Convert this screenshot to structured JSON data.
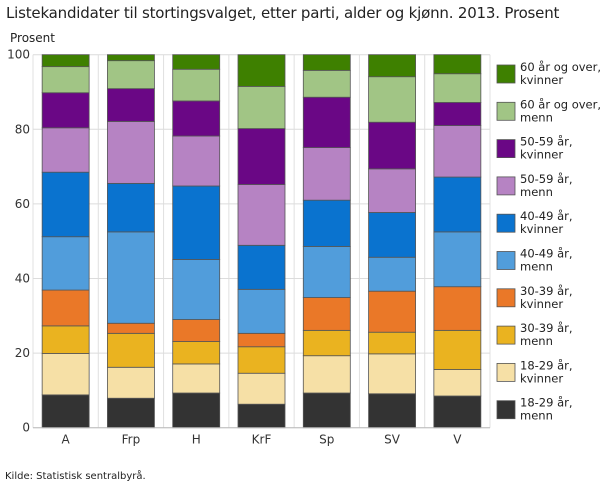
{
  "chart_data": {
    "type": "bar",
    "stacked": true,
    "title": "Listekandidater til stortingsvalget, etter parti, alder og kjønn. 2013. Prosent",
    "ylabel": "Prosent",
    "xlabel": "",
    "ylim": [
      0,
      100
    ],
    "yticks": [
      0,
      20,
      40,
      60,
      80,
      100
    ],
    "grid": true,
    "legend_position": "right",
    "categories": [
      "A",
      "Frp",
      "H",
      "KrF",
      "Sp",
      "SV",
      "V"
    ],
    "series": [
      {
        "name": "18-29 år, menn",
        "color": "#333333",
        "values": [
          8.8,
          7.9,
          9.3,
          6.3,
          9.3,
          9.1,
          8.5
        ]
      },
      {
        "name": "18-29 år, kvinner",
        "color": "#f6e0a6",
        "values": [
          11.1,
          8.3,
          7.8,
          8.3,
          10.0,
          10.7,
          7.1
        ]
      },
      {
        "name": "30-39 år, menn",
        "color": "#eab320",
        "values": [
          7.4,
          9.1,
          6.0,
          7.1,
          6.8,
          5.8,
          10.5
        ]
      },
      {
        "name": "30-39 år, kvinner",
        "color": "#ea7828",
        "values": [
          9.6,
          2.7,
          5.9,
          3.6,
          8.8,
          11.0,
          11.7
        ]
      },
      {
        "name": "40-49 år, menn",
        "color": "#519ddb",
        "values": [
          14.3,
          24.5,
          16.1,
          11.8,
          13.7,
          9.1,
          14.7
        ]
      },
      {
        "name": "40-49 år, kvinner",
        "color": "#0a73cf",
        "values": [
          17.3,
          13.0,
          19.7,
          11.8,
          12.4,
          12.0,
          14.7
        ]
      },
      {
        "name": "50-59 år, menn",
        "color": "#b683c3",
        "values": [
          11.9,
          16.6,
          13.4,
          16.3,
          14.1,
          11.7,
          13.8
        ]
      },
      {
        "name": "50-59 år, kvinner",
        "color": "#6a0785",
        "values": [
          9.4,
          8.8,
          9.4,
          15.0,
          13.5,
          12.5,
          6.2
        ]
      },
      {
        "name": "60 år og over, menn",
        "color": "#a1c585",
        "values": [
          7.0,
          7.5,
          8.5,
          11.3,
          7.2,
          12.2,
          7.7
        ]
      },
      {
        "name": "60 år og over, kvinner",
        "color": "#3e8000",
        "values": [
          3.2,
          1.6,
          3.9,
          8.5,
          4.2,
          5.9,
          5.1
        ]
      }
    ],
    "legend_labels": [
      [
        "60 år og over,",
        "kvinner"
      ],
      [
        "60 år og over,",
        "menn"
      ],
      [
        "50-59 år,",
        "kvinner"
      ],
      [
        "50-59 år,",
        "menn"
      ],
      [
        "40-49 år,",
        "kvinner"
      ],
      [
        "40-49 år,",
        "menn"
      ],
      [
        "30-39 år,",
        "kvinner"
      ],
      [
        "30-39 år,",
        "menn"
      ],
      [
        "18-29 år,",
        "kvinner"
      ],
      [
        "18-29 år,",
        "menn"
      ]
    ]
  },
  "source": "Kilde: Statistisk sentralbyrå."
}
